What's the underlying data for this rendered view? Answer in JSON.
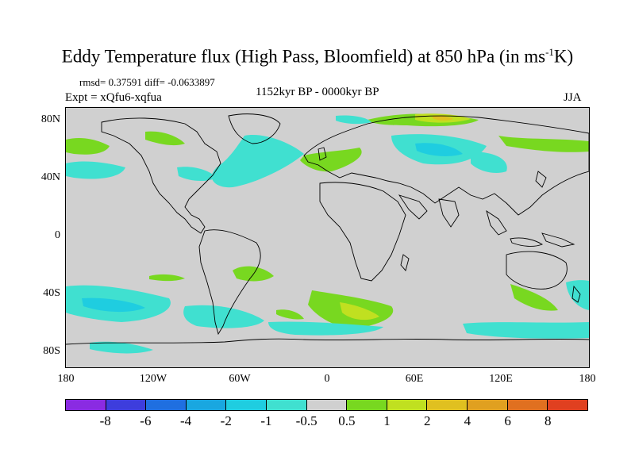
{
  "title": {
    "main": "Eddy Temperature flux (High Pass, Bloomfield) at 850 hPa (in ms",
    "sup": "-1",
    "tail": "K)"
  },
  "stats": "rmsd= 0.37591 diff= -0.0633897",
  "experiment": "Expt = xQfu6-xqfua",
  "period": "1152kyr BP - 0000kyr BP",
  "season": "JJA",
  "y_axis": {
    "ticks": [
      "80N",
      "40N",
      "0",
      "40S",
      "80S"
    ]
  },
  "x_axis": {
    "ticks": [
      "180",
      "120W",
      "60W",
      "0",
      "60E",
      "120E",
      "180"
    ]
  },
  "colorbar": {
    "colors": [
      "#8a2be2",
      "#3d3ddd",
      "#1f6fe0",
      "#19a7e0",
      "#1fcde0",
      "#40e0d0",
      "#d0d0d0",
      "#78d820",
      "#c0e020",
      "#e0c020",
      "#e0a020",
      "#e07020",
      "#e04020"
    ],
    "labels": [
      "-8",
      "-6",
      "-4",
      "-2",
      "-1",
      "-0.5",
      "0.5",
      "1",
      "2",
      "4",
      "6",
      "8"
    ]
  },
  "map": {
    "background_color": "#d0d0d0",
    "coast_color": "#000000",
    "positive_colors": {
      "low": "#78d820",
      "mid": "#c0e020",
      "high": "#e0c020"
    },
    "negative_colors": {
      "low": "#40e0d0",
      "mid": "#1fcde0",
      "high": "#19a7e0"
    }
  }
}
